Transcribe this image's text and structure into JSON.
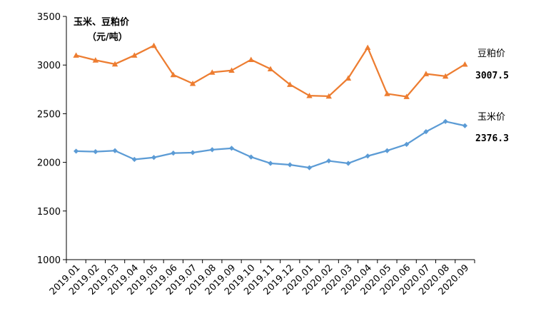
{
  "chart_data": {
    "type": "line",
    "title_line1": "玉米、豆粕价",
    "title_line2": "（元/吨）",
    "categories": [
      "2019.01",
      "2019.02",
      "2019.03",
      "2019.04",
      "2019.05",
      "2019.06",
      "2019.07",
      "2019.08",
      "2019.09",
      "2019.10",
      "2019.11",
      "2019.12",
      "2020.01",
      "2020.02",
      "2020.03",
      "2020.04",
      "2020.05",
      "2020.06",
      "2020.07",
      "2020.08",
      "2020.09"
    ],
    "ylim": [
      1000,
      3500
    ],
    "yticks": [
      1000,
      1500,
      2000,
      2500,
      3000,
      3500
    ],
    "grid": false,
    "series": [
      {
        "name": "豆粕价",
        "color": "#ED7D31",
        "marker": "triangle",
        "values": [
          3100,
          3050,
          3010,
          3100,
          3200,
          2900,
          2810,
          2925,
          2945,
          3055,
          2960,
          2800,
          2685,
          2680,
          2865,
          3180,
          2705,
          2675,
          2910,
          2885,
          3007.5
        ],
        "end_label": "3007.5"
      },
      {
        "name": "玉米价",
        "color": "#5B9BD5",
        "marker": "diamond",
        "values": [
          2115,
          2110,
          2120,
          2030,
          2050,
          2095,
          2100,
          2130,
          2145,
          2055,
          1990,
          1975,
          1945,
          2015,
          1990,
          2065,
          2120,
          2185,
          2315,
          2420,
          2376.3
        ],
        "end_label": "2376.3"
      }
    ]
  }
}
